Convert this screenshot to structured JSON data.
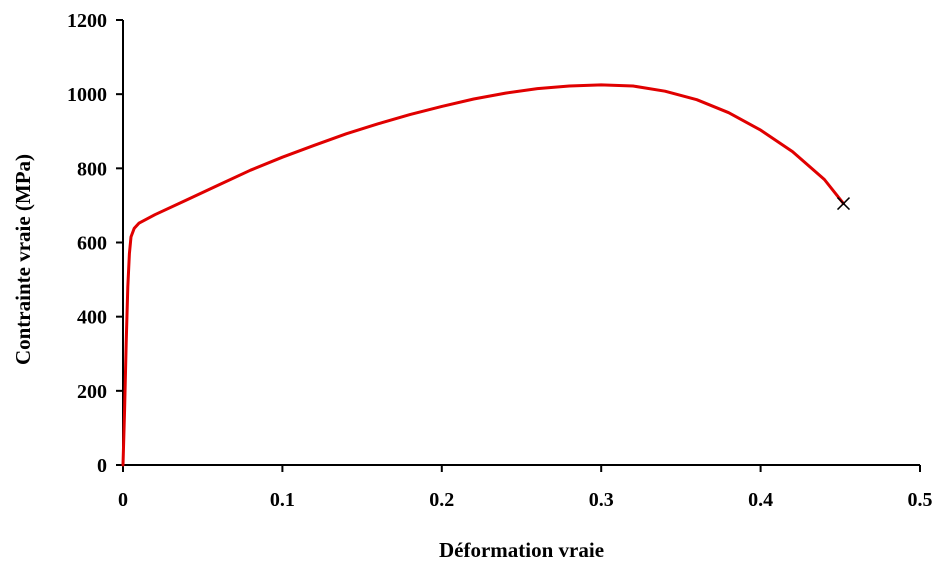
{
  "chart_data": {
    "type": "line",
    "xlabel": "Déformation vraie",
    "ylabel": "Contrainte vraie (MPa)",
    "xlim": [
      0,
      0.5
    ],
    "ylim": [
      0,
      1200
    ],
    "x_ticks": [
      "0",
      "0.1",
      "0.2",
      "0.3",
      "0.4",
      "0.5"
    ],
    "y_ticks": [
      "0",
      "200",
      "400",
      "600",
      "800",
      "1000",
      "1200"
    ],
    "grid": false,
    "legend": false,
    "series": [
      {
        "color": "#e00000",
        "points": [
          [
            0.0,
            0
          ],
          [
            0.001,
            150
          ],
          [
            0.002,
            330
          ],
          [
            0.003,
            480
          ],
          [
            0.004,
            570
          ],
          [
            0.005,
            615
          ],
          [
            0.007,
            638
          ],
          [
            0.01,
            652
          ],
          [
            0.02,
            675
          ],
          [
            0.04,
            715
          ],
          [
            0.06,
            755
          ],
          [
            0.08,
            795
          ],
          [
            0.1,
            830
          ],
          [
            0.12,
            862
          ],
          [
            0.14,
            893
          ],
          [
            0.16,
            920
          ],
          [
            0.18,
            945
          ],
          [
            0.2,
            967
          ],
          [
            0.22,
            987
          ],
          [
            0.24,
            1003
          ],
          [
            0.26,
            1015
          ],
          [
            0.28,
            1022
          ],
          [
            0.3,
            1025
          ],
          [
            0.32,
            1022
          ],
          [
            0.34,
            1008
          ],
          [
            0.36,
            985
          ],
          [
            0.38,
            950
          ],
          [
            0.4,
            903
          ],
          [
            0.42,
            845
          ],
          [
            0.44,
            770
          ],
          [
            0.452,
            705
          ]
        ]
      }
    ],
    "end_marker": {
      "type": "x",
      "x": 0.452,
      "y": 705
    }
  }
}
